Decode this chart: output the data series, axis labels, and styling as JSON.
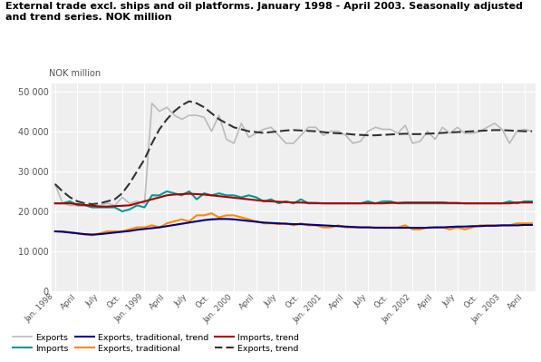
{
  "title_line1": "External trade excl. ships and oil platforms. January 1998 - April 2003. Seasonally adjusted",
  "title_line2": "and trend series. NOK million",
  "ylabel": "NOK million",
  "ylim": [
    0,
    52000
  ],
  "yticks": [
    0,
    10000,
    20000,
    30000,
    40000,
    50000
  ],
  "ytick_labels": [
    "0",
    "10 000",
    "20 000",
    "30 000",
    "40 000",
    "50 000"
  ],
  "background_color": "#efefef",
  "title_color": "#000000",
  "title_fontsize": 8.0,
  "tick_label_color": "#555555",
  "x_tick_labels": [
    "Jan. 1998",
    "April",
    "July",
    "Oct.",
    "Jan. 1999",
    "April",
    "July",
    "Oct.",
    "Jan. 2000",
    "April",
    "July",
    "Oct.",
    "Jan. 2001",
    "April",
    "July",
    "Oct.",
    "Jan. 2002",
    "April",
    "July",
    "Oct.",
    "Jan. 2003",
    "April"
  ],
  "exports": [
    26800,
    22000,
    21500,
    21500,
    21500,
    21000,
    21500,
    22000,
    21500,
    23500,
    22000,
    22500,
    22000,
    47000,
    45000,
    46000,
    44000,
    43000,
    44000,
    44000,
    43500,
    40000,
    44000,
    38000,
    37000,
    42000,
    38500,
    39500,
    40500,
    41000,
    39000,
    37000,
    37000,
    39000,
    41000,
    41000,
    39000,
    40000,
    40000,
    39000,
    37000,
    37500,
    40000,
    41000,
    40500,
    40500,
    39500,
    41500,
    37000,
    37500,
    40000,
    38000,
    41000,
    39500,
    41000,
    39500,
    39500,
    40000,
    41000,
    42000,
    40500,
    37000,
    40000,
    40500,
    40000
  ],
  "exports_color": "#bbbbbb",
  "exports_linewidth": 1.2,
  "exports_trend": [
    26800,
    25000,
    23500,
    22500,
    22000,
    21800,
    22000,
    22500,
    23000,
    24500,
    27000,
    30000,
    33000,
    37000,
    40500,
    43000,
    45000,
    46500,
    47500,
    47000,
    46000,
    44500,
    43000,
    42000,
    41000,
    40500,
    40000,
    39800,
    39600,
    39800,
    40000,
    40200,
    40300,
    40200,
    40100,
    40000,
    39800,
    39600,
    39500,
    39400,
    39200,
    39100,
    39000,
    39000,
    39100,
    39200,
    39300,
    39400,
    39300,
    39300,
    39400,
    39500,
    39600,
    39700,
    39800,
    39900,
    40000,
    40100,
    40200,
    40300,
    40300,
    40200,
    40100,
    40000,
    40000
  ],
  "exports_trend_color": "#333333",
  "exports_trend_linewidth": 1.5,
  "imports": [
    22000,
    22000,
    22500,
    21500,
    21500,
    21000,
    21000,
    21000,
    21000,
    20000,
    20500,
    21500,
    21000,
    24000,
    24000,
    25000,
    24500,
    24000,
    25000,
    23000,
    24500,
    24000,
    24500,
    24000,
    24000,
    23500,
    24000,
    23500,
    22500,
    23000,
    22000,
    22500,
    22000,
    23000,
    22000,
    22000,
    22000,
    22000,
    22000,
    22000,
    22000,
    22000,
    22500,
    22000,
    22500,
    22500,
    22000,
    22000,
    22000,
    22000,
    22000,
    22000,
    22000,
    22000,
    22000,
    22000,
    22000,
    22000,
    22000,
    22000,
    22000,
    22500,
    22000,
    22500,
    22500
  ],
  "imports_color": "#009999",
  "imports_linewidth": 1.5,
  "imports_trend": [
    22000,
    22000,
    22000,
    21800,
    21600,
    21400,
    21200,
    21200,
    21300,
    21400,
    21500,
    22000,
    22500,
    23000,
    23500,
    24000,
    24200,
    24300,
    24400,
    24300,
    24200,
    24000,
    23800,
    23600,
    23400,
    23200,
    23000,
    22800,
    22600,
    22500,
    22400,
    22300,
    22200,
    22200,
    22100,
    22100,
    22000,
    22000,
    22000,
    22000,
    22000,
    22000,
    22000,
    22000,
    22000,
    22100,
    22100,
    22200,
    22200,
    22200,
    22200,
    22200,
    22200,
    22100,
    22100,
    22000,
    22000,
    22000,
    22000,
    22000,
    22000,
    22000,
    22200,
    22200,
    22200
  ],
  "imports_trend_color": "#aa0000",
  "imports_trend_linewidth": 1.5,
  "exp_trad": [
    15000,
    15000,
    14800,
    14500,
    14200,
    14000,
    14500,
    15000,
    15000,
    15000,
    15500,
    16000,
    16000,
    16500,
    16000,
    17000,
    17500,
    18000,
    17500,
    19000,
    19000,
    19500,
    18500,
    19000,
    19000,
    18500,
    18000,
    17500,
    17000,
    17000,
    16800,
    17000,
    16500,
    17000,
    16500,
    16500,
    16000,
    16000,
    16500,
    16000,
    16000,
    16000,
    16000,
    16000,
    16000,
    16000,
    16000,
    16500,
    15500,
    15500,
    16000,
    16000,
    16000,
    15500,
    16000,
    15500,
    16000,
    16500,
    16500,
    16500,
    16500,
    16500,
    17000,
    17000,
    17000
  ],
  "exp_trad_color": "#ff8800",
  "exp_trad_linewidth": 1.5,
  "exp_trad_trend": [
    15000,
    14900,
    14700,
    14500,
    14300,
    14200,
    14300,
    14500,
    14700,
    14900,
    15100,
    15400,
    15600,
    15800,
    16000,
    16300,
    16600,
    16900,
    17200,
    17500,
    17800,
    18000,
    18100,
    18100,
    18000,
    17800,
    17600,
    17400,
    17200,
    17100,
    17000,
    16900,
    16800,
    16800,
    16700,
    16600,
    16500,
    16400,
    16300,
    16200,
    16100,
    16000,
    16000,
    15900,
    15900,
    15900,
    15900,
    15900,
    15900,
    15900,
    15900,
    16000,
    16000,
    16100,
    16200,
    16200,
    16300,
    16300,
    16400,
    16400,
    16500,
    16500,
    16500,
    16600,
    16600
  ],
  "exp_trad_trend_color": "#000088",
  "exp_trad_trend_linewidth": 1.5,
  "n_points": 65,
  "teal_color": "#00aaaa",
  "legend_items": [
    {
      "label": "Exports",
      "color": "#bbbbbb",
      "ls": "-",
      "lw": 1.2,
      "dashes": null
    },
    {
      "label": "Imports",
      "color": "#009999",
      "ls": "-",
      "lw": 1.5,
      "dashes": null
    },
    {
      "label": "Exports, traditional, trend",
      "color": "#000088",
      "ls": "-",
      "lw": 1.5,
      "dashes": null
    },
    {
      "label": "Exports, traditional",
      "color": "#ff8800",
      "ls": "-",
      "lw": 1.5,
      "dashes": null
    },
    {
      "label": "Imports, trend",
      "color": "#aa0000",
      "ls": "-",
      "lw": 1.5,
      "dashes": null
    },
    {
      "label": "Exports, trend",
      "color": "#333333",
      "ls": "--",
      "lw": 1.5,
      "dashes": [
        4,
        2
      ]
    }
  ]
}
